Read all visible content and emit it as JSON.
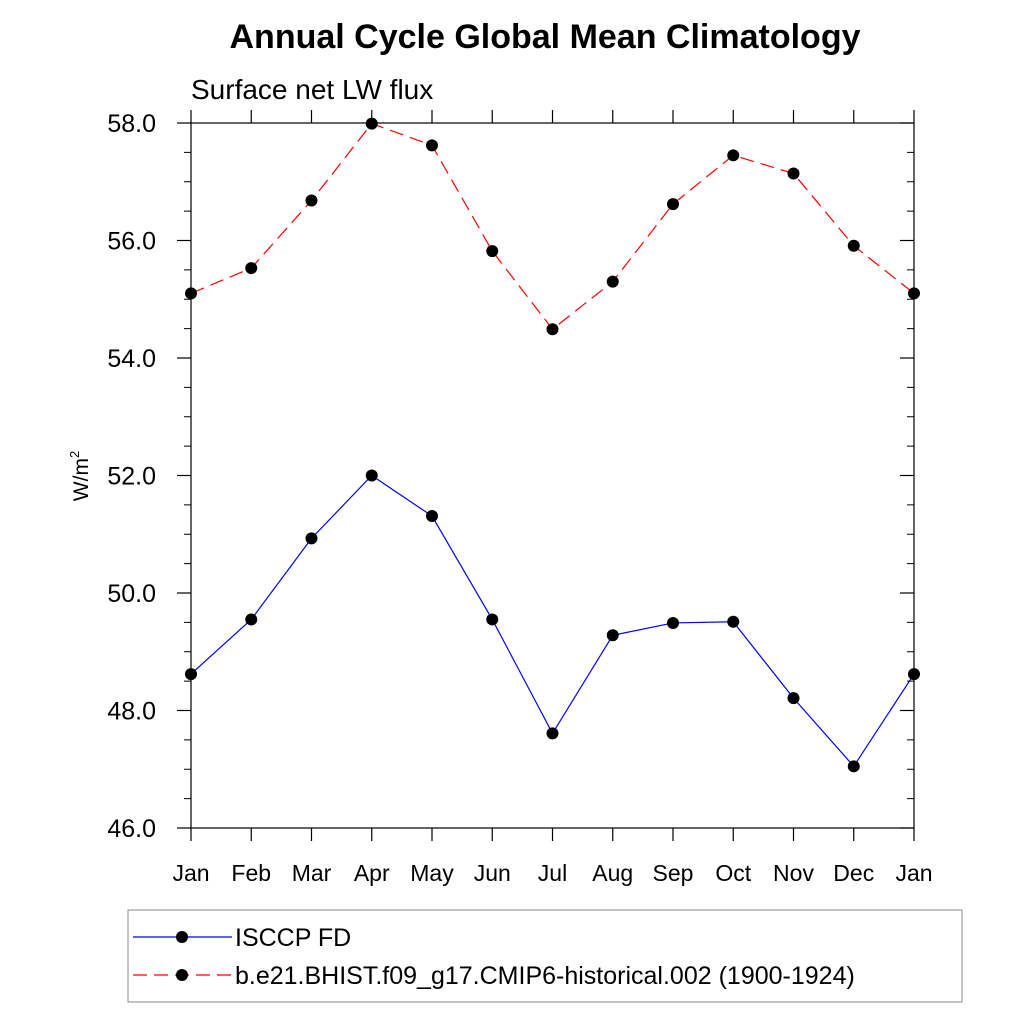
{
  "chart_data": {
    "type": "line",
    "title": "Annual Cycle Global Mean Climatology",
    "subtitle": "Surface net LW flux",
    "ylabel": "W/m",
    "ylabel_superscript": "2",
    "xlabel": "",
    "categories": [
      "Jan",
      "Feb",
      "Mar",
      "Apr",
      "May",
      "Jun",
      "Jul",
      "Aug",
      "Sep",
      "Oct",
      "Nov",
      "Dec",
      "Jan"
    ],
    "ylim": [
      46.0,
      58.0
    ],
    "yticks": [
      "46.0",
      "48.0",
      "50.0",
      "52.0",
      "54.0",
      "56.0",
      "58.0"
    ],
    "grid": false,
    "legend_position": "bottom",
    "series": [
      {
        "name": "ISCCP FD",
        "color": "#0000ff",
        "dash": "solid",
        "marker": "filled-circle",
        "values": [
          48.62,
          49.55,
          50.93,
          52.0,
          51.31,
          49.55,
          47.61,
          49.28,
          49.49,
          49.51,
          48.21,
          47.05,
          48.62
        ]
      },
      {
        "name": "b.e21.BHIST.f09_g17.CMIP6-historical.002 (1900-1924)",
        "color": "#ff0000",
        "dash": "dashed",
        "marker": "filled-circle",
        "values": [
          55.1,
          55.53,
          56.68,
          57.99,
          57.62,
          55.82,
          54.49,
          55.3,
          56.62,
          57.45,
          57.14,
          55.91,
          55.1
        ]
      }
    ]
  }
}
